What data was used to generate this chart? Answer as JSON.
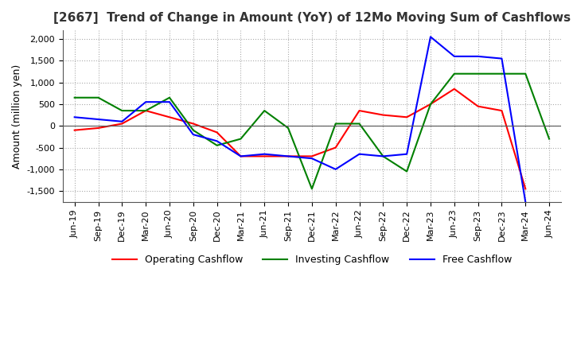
{
  "title": "[2667]  Trend of Change in Amount (YoY) of 12Mo Moving Sum of Cashflows",
  "ylabel": "Amount (million yen)",
  "x_labels": [
    "Jun-19",
    "Sep-19",
    "Dec-19",
    "Mar-20",
    "Jun-20",
    "Sep-20",
    "Dec-20",
    "Mar-21",
    "Jun-21",
    "Sep-21",
    "Dec-21",
    "Mar-22",
    "Jun-22",
    "Sep-22",
    "Dec-22",
    "Mar-23",
    "Jun-23",
    "Sep-23",
    "Dec-23",
    "Mar-24",
    "Jun-24"
  ],
  "operating": [
    -100,
    -50,
    50,
    350,
    200,
    50,
    -150,
    -700,
    -700,
    -700,
    -700,
    -500,
    350,
    250,
    200,
    500,
    850,
    450,
    350,
    -1450,
    null
  ],
  "investing": [
    650,
    650,
    350,
    350,
    650,
    -100,
    -450,
    -300,
    350,
    -50,
    -1450,
    50,
    50,
    -700,
    -1050,
    500,
    1200,
    1200,
    1200,
    1200,
    -300
  ],
  "free": [
    200,
    150,
    100,
    550,
    550,
    -200,
    -350,
    -700,
    -650,
    -700,
    -750,
    -1000,
    -650,
    -700,
    -650,
    2050,
    1600,
    1600,
    1550,
    -1750,
    null
  ],
  "ylim": [
    -1750,
    2200
  ],
  "yticks": [
    -1500,
    -1000,
    -500,
    0,
    500,
    1000,
    1500,
    2000
  ],
  "operating_color": "#ff0000",
  "investing_color": "#008000",
  "free_color": "#0000ff",
  "bg_color": "#ffffff",
  "grid_color": "#aaaaaa",
  "title_color": "#333333"
}
